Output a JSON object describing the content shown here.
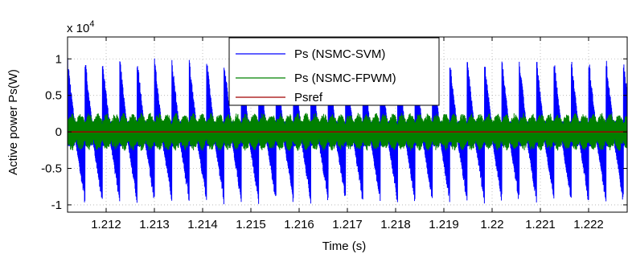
{
  "chart_data": {
    "type": "line",
    "title": "",
    "xlabel": "Time (s)",
    "ylabel": "Active power Ps(W)",
    "y_multiplier_label": "x 10",
    "y_multiplier_exponent": "4",
    "xlim": [
      1.2112,
      1.2228
    ],
    "ylim": [
      -1.1,
      1.3
    ],
    "x_ticks": [
      1.212,
      1.213,
      1.214,
      1.215,
      1.216,
      1.217,
      1.218,
      1.219,
      1.22,
      1.221,
      1.222
    ],
    "x_tick_labels": [
      "1.212",
      "1.213",
      "1.214",
      "1.215",
      "1.216",
      "1.217",
      "1.218",
      "1.219",
      "1.22",
      "1.221",
      "1.222"
    ],
    "y_ticks": [
      -1,
      -0.5,
      0,
      0.5,
      1
    ],
    "y_tick_labels": [
      "-1",
      "-0.5",
      "0",
      "0.5",
      "1"
    ],
    "grid": true,
    "legend_position": "top-center",
    "series": [
      {
        "name": "Ps (NSMC-SVM)",
        "color": "#0000ff",
        "waveform": "sawtooth bursts",
        "period": 0.00036,
        "max": 1.05,
        "min": -1.0
      },
      {
        "name": "Ps (NSMC-FPWM)",
        "color": "#008000",
        "waveform": "dense oscillation",
        "max": 0.3,
        "min": -0.3
      },
      {
        "name": "Psref",
        "color": "#a00000",
        "value": 0
      }
    ]
  }
}
